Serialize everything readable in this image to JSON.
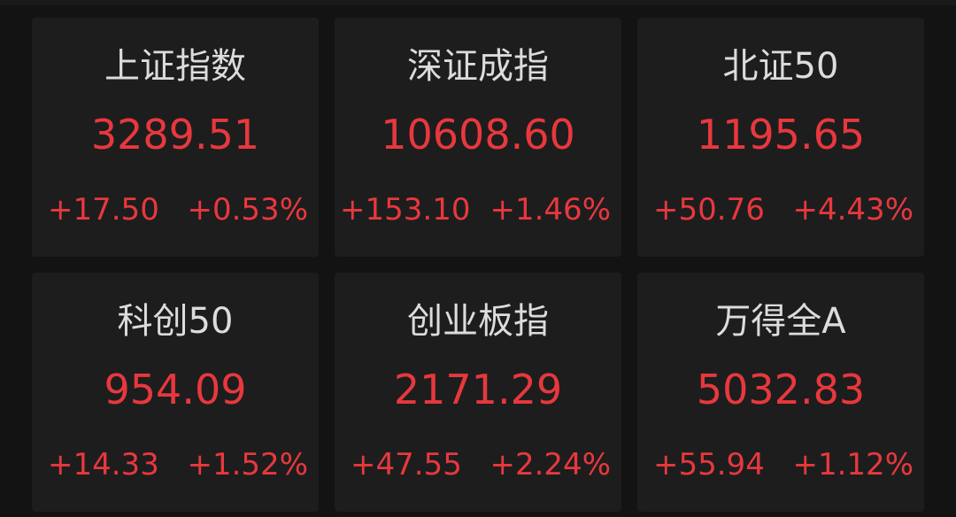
{
  "colors": {
    "up": "#e8383d",
    "title": "#dcdcdc",
    "card": "#1d1d1e",
    "background": "#131313"
  },
  "indices": [
    {
      "name": "上证指数",
      "value": "3289.51",
      "change": "+17.50",
      "percent": "+0.53%"
    },
    {
      "name": "深证成指",
      "value": "10608.60",
      "change": "+153.10",
      "percent": "+1.46%"
    },
    {
      "name": "北证50",
      "value": "1195.65",
      "change": "+50.76",
      "percent": "+4.43%"
    },
    {
      "name": "科创50",
      "value": "954.09",
      "change": "+14.33",
      "percent": "+1.52%"
    },
    {
      "name": "创业板指",
      "value": "2171.29",
      "change": "+47.55",
      "percent": "+2.24%"
    },
    {
      "name": "万得全A",
      "value": "5032.83",
      "change": "+55.94",
      "percent": "+1.12%"
    }
  ]
}
